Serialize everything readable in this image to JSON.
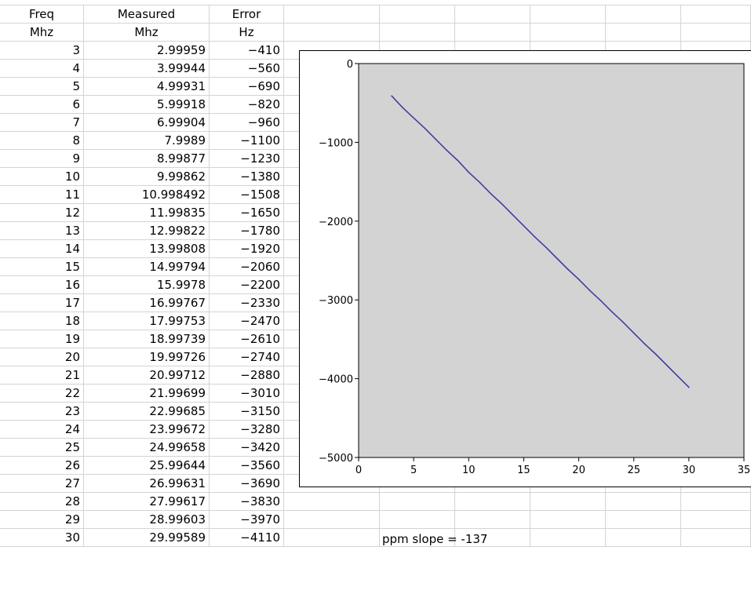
{
  "table": {
    "headers": [
      {
        "freq": "Freq",
        "measured": "Measured",
        "error": "Error"
      },
      {
        "freq": "Mhz",
        "measured": "Mhz",
        "error": "Hz"
      }
    ],
    "rows": [
      {
        "freq": "3",
        "measured": "2.99959",
        "error": "−410"
      },
      {
        "freq": "4",
        "measured": "3.99944",
        "error": "−560"
      },
      {
        "freq": "5",
        "measured": "4.99931",
        "error": "−690"
      },
      {
        "freq": "6",
        "measured": "5.99918",
        "error": "−820"
      },
      {
        "freq": "7",
        "measured": "6.99904",
        "error": "−960"
      },
      {
        "freq": "8",
        "measured": "7.9989",
        "error": "−1100"
      },
      {
        "freq": "9",
        "measured": "8.99877",
        "error": "−1230"
      },
      {
        "freq": "10",
        "measured": "9.99862",
        "error": "−1380"
      },
      {
        "freq": "11",
        "measured": "10.998492",
        "error": "−1508"
      },
      {
        "freq": "12",
        "measured": "11.99835",
        "error": "−1650"
      },
      {
        "freq": "13",
        "measured": "12.99822",
        "error": "−1780"
      },
      {
        "freq": "14",
        "measured": "13.99808",
        "error": "−1920"
      },
      {
        "freq": "15",
        "measured": "14.99794",
        "error": "−2060"
      },
      {
        "freq": "16",
        "measured": "15.9978",
        "error": "−2200"
      },
      {
        "freq": "17",
        "measured": "16.99767",
        "error": "−2330"
      },
      {
        "freq": "18",
        "measured": "17.99753",
        "error": "−2470"
      },
      {
        "freq": "19",
        "measured": "18.99739",
        "error": "−2610"
      },
      {
        "freq": "20",
        "measured": "19.99726",
        "error": "−2740"
      },
      {
        "freq": "21",
        "measured": "20.99712",
        "error": "−2880"
      },
      {
        "freq": "22",
        "measured": "21.99699",
        "error": "−3010"
      },
      {
        "freq": "23",
        "measured": "22.99685",
        "error": "−3150"
      },
      {
        "freq": "24",
        "measured": "23.99672",
        "error": "−3280"
      },
      {
        "freq": "25",
        "measured": "24.99658",
        "error": "−3420"
      },
      {
        "freq": "26",
        "measured": "25.99644",
        "error": "−3560"
      },
      {
        "freq": "27",
        "measured": "26.99631",
        "error": "−3690"
      },
      {
        "freq": "28",
        "measured": "27.99617",
        "error": "−3830"
      },
      {
        "freq": "29",
        "measured": "28.99603",
        "error": "−3970"
      },
      {
        "freq": "30",
        "measured": "29.99589",
        "error": "−4110"
      }
    ]
  },
  "note": "ppm slope = -137",
  "chart_data": {
    "type": "line",
    "title": "",
    "xlabel": "",
    "ylabel": "",
    "xlim": [
      0,
      35
    ],
    "ylim": [
      -5000,
      0
    ],
    "x_ticks": [
      0,
      5,
      10,
      15,
      20,
      25,
      30,
      35
    ],
    "y_ticks": [
      0,
      -1000,
      -2000,
      -3000,
      -4000,
      -5000
    ],
    "x_tick_labels": [
      "0",
      "5",
      "10",
      "15",
      "20",
      "25",
      "30",
      "35"
    ],
    "y_tick_labels": [
      "0",
      "−1000",
      "−2000",
      "−3000",
      "−4000",
      "−5000"
    ],
    "grid": false,
    "legend": "none",
    "plot_background": "#d3d3d3",
    "line_color": "#3f3f9f",
    "series": [
      {
        "x": [
          3,
          4,
          5,
          6,
          7,
          8,
          9,
          10,
          11,
          12,
          13,
          14,
          15,
          16,
          17,
          18,
          19,
          20,
          21,
          22,
          23,
          24,
          25,
          26,
          27,
          28,
          29,
          30
        ],
        "values": [
          -410,
          -560,
          -690,
          -820,
          -960,
          -1100,
          -1230,
          -1380,
          -1508,
          -1650,
          -1780,
          -1920,
          -2060,
          -2200,
          -2330,
          -2470,
          -2610,
          -2740,
          -2880,
          -3010,
          -3150,
          -3280,
          -3420,
          -3560,
          -3690,
          -3830,
          -3970,
          -4110
        ]
      }
    ]
  }
}
